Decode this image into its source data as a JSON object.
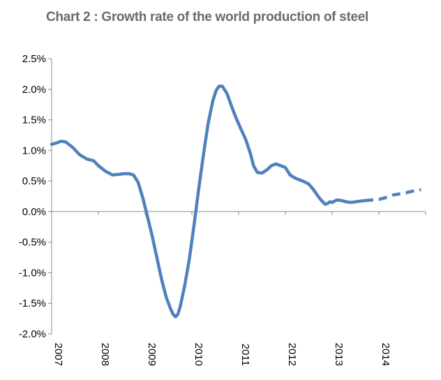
{
  "chart_data": {
    "type": "line",
    "title": "Chart 2 : Growth rate of the world production of steel",
    "xlabel": "",
    "ylabel": "",
    "ylim": [
      -0.02,
      0.025
    ],
    "xlim": [
      2007,
      2015
    ],
    "y_ticks": [
      {
        "value": 0.025,
        "label": "2.5%"
      },
      {
        "value": 0.02,
        "label": "2.0%"
      },
      {
        "value": 0.015,
        "label": "1.5%"
      },
      {
        "value": 0.01,
        "label": "1.0%"
      },
      {
        "value": 0.005,
        "label": "0.5%"
      },
      {
        "value": 0.0,
        "label": "0.0%"
      },
      {
        "value": -0.005,
        "label": "-0.5%"
      },
      {
        "value": -0.01,
        "label": "-1.0%"
      },
      {
        "value": -0.015,
        "label": "-1.5%"
      },
      {
        "value": -0.02,
        "label": "-2.0%"
      }
    ],
    "x_ticks": [
      {
        "value": 2007,
        "label": "2007"
      },
      {
        "value": 2008,
        "label": "2008"
      },
      {
        "value": 2009,
        "label": "2009"
      },
      {
        "value": 2010,
        "label": "2010"
      },
      {
        "value": 2011,
        "label": "2011"
      },
      {
        "value": 2012,
        "label": "2012"
      },
      {
        "value": 2013,
        "label": "2013"
      },
      {
        "value": 2014,
        "label": "2014"
      }
    ],
    "grid": false,
    "legend": "none",
    "line_color": "#4f81bd",
    "series": [
      {
        "style": "solid",
        "x": [
          2007.0,
          2007.1,
          2007.2,
          2007.3,
          2007.45,
          2007.6,
          2007.75,
          2007.9,
          2008.0,
          2008.15,
          2008.3,
          2008.45,
          2008.55,
          2008.65,
          2008.75,
          2008.85,
          2008.95,
          2009.05,
          2009.15,
          2009.25,
          2009.35,
          2009.45,
          2009.55,
          2009.6,
          2009.65,
          2009.7,
          2009.75,
          2009.85,
          2009.95,
          2010.05,
          2010.15,
          2010.25,
          2010.35,
          2010.45,
          2010.52,
          2010.58,
          2010.65,
          2010.75,
          2010.85,
          2010.95,
          2011.05,
          2011.15,
          2011.25,
          2011.32,
          2011.4,
          2011.5,
          2011.6,
          2011.7,
          2011.8,
          2011.9,
          2012.0,
          2012.1,
          2012.2,
          2012.3,
          2012.4,
          2012.5,
          2012.6,
          2012.7,
          2012.75,
          2012.8,
          2012.85,
          2012.9,
          2012.95,
          2013.0,
          2013.1,
          2013.2,
          2013.3,
          2013.4,
          2013.5,
          2013.6,
          2013.7
        ],
        "y": [
          0.011,
          0.0112,
          0.0115,
          0.0114,
          0.0105,
          0.0093,
          0.0086,
          0.0083,
          0.0075,
          0.0066,
          0.006,
          0.0061,
          0.0062,
          0.0062,
          0.006,
          0.0048,
          0.0022,
          -0.0008,
          -0.004,
          -0.0075,
          -0.011,
          -0.014,
          -0.016,
          -0.0168,
          -0.0172,
          -0.0168,
          -0.0155,
          -0.012,
          -0.0075,
          -0.002,
          0.004,
          0.0095,
          0.0145,
          0.0182,
          0.0198,
          0.0205,
          0.0205,
          0.0193,
          0.0172,
          0.0152,
          0.0135,
          0.0118,
          0.0095,
          0.0075,
          0.0064,
          0.0063,
          0.0068,
          0.0075,
          0.0078,
          0.0075,
          0.0072,
          0.006,
          0.0055,
          0.0052,
          0.0049,
          0.0045,
          0.0036,
          0.0025,
          0.002,
          0.0016,
          0.0012,
          0.0013,
          0.0016,
          0.0015,
          0.0019,
          0.0018,
          0.0016,
          0.0015,
          0.0016,
          0.0017,
          0.0018
        ]
      },
      {
        "style": "dashed",
        "x": [
          2013.7,
          2013.85,
          2014.0,
          2014.15,
          2014.3,
          2014.45,
          2014.6,
          2014.75,
          2014.9
        ],
        "y": [
          0.0018,
          0.0019,
          0.002,
          0.0023,
          0.0027,
          0.0029,
          0.0031,
          0.0034,
          0.0036
        ]
      }
    ]
  }
}
